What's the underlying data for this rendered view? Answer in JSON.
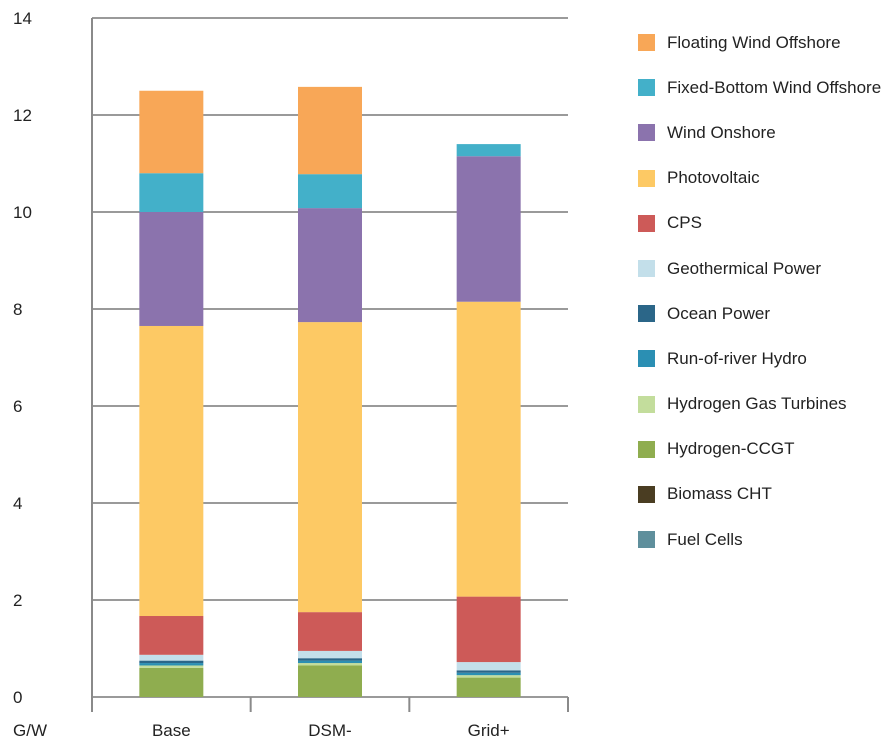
{
  "chart_data": {
    "type": "bar",
    "stacked": true,
    "unit_label": "G/W",
    "categories": [
      "Base",
      "DSM-",
      "Grid+"
    ],
    "ylim": [
      0,
      14
    ],
    "yticks": [
      0,
      2,
      4,
      6,
      8,
      10,
      12,
      14
    ],
    "grid": true,
    "legend_position": "right",
    "series": [
      {
        "name": "Fuel Cells",
        "color": "#5f8f9c",
        "values": [
          0.0,
          0.0,
          0.0
        ]
      },
      {
        "name": "Biomass CHT",
        "color": "#4a3d22",
        "values": [
          0.0,
          0.0,
          0.0
        ]
      },
      {
        "name": "Hydrogen-CCGT",
        "color": "#8fad4f",
        "values": [
          0.6,
          0.65,
          0.4
        ]
      },
      {
        "name": "Hydrogen Gas Turbines",
        "color": "#c3dd9c",
        "values": [
          0.05,
          0.05,
          0.05
        ]
      },
      {
        "name": "Run-of-river Hydro",
        "color": "#2b8fb3",
        "values": [
          0.05,
          0.05,
          0.05
        ]
      },
      {
        "name": "Ocean Power",
        "color": "#2b6688",
        "values": [
          0.05,
          0.05,
          0.05
        ]
      },
      {
        "name": "Geothermical Power",
        "color": "#c3dfea",
        "values": [
          0.12,
          0.15,
          0.17
        ]
      },
      {
        "name": "CPS",
        "color": "#cd5a58",
        "values": [
          0.8,
          0.8,
          1.35
        ]
      },
      {
        "name": "Photovoltaic",
        "color": "#fdc964",
        "values": [
          5.98,
          5.98,
          6.08
        ]
      },
      {
        "name": "Wind Onshore",
        "color": "#8b73ad",
        "values": [
          2.35,
          2.35,
          3.0
        ]
      },
      {
        "name": "Fixed-Bottom Wind Offshore",
        "color": "#43b0c9",
        "values": [
          0.8,
          0.7,
          0.25
        ]
      },
      {
        "name": "Floating Wind Offshore",
        "color": "#f8a757",
        "values": [
          1.7,
          1.8,
          0.0
        ]
      }
    ]
  }
}
